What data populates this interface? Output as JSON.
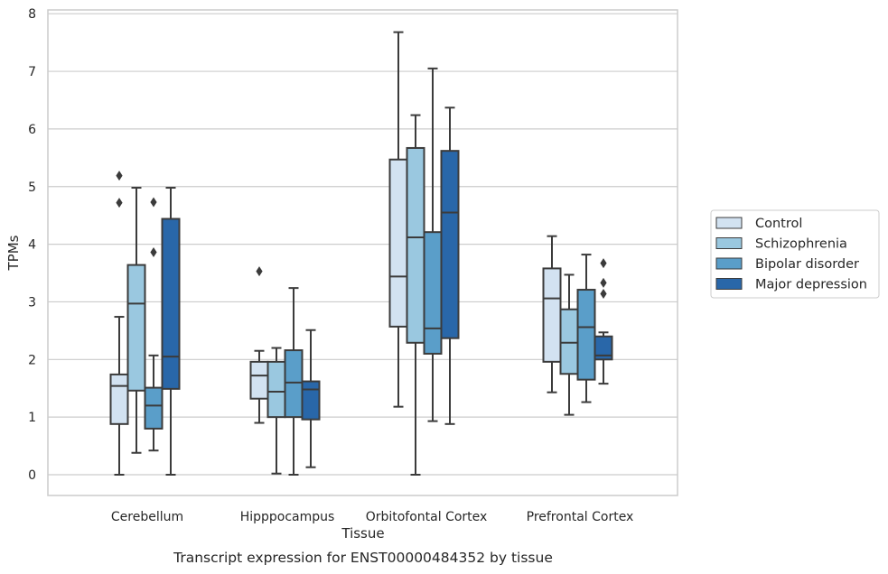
{
  "chart_data": {
    "type": "box",
    "xlabel": "Tissue",
    "ylabel": "TPMs",
    "caption": "Transcript expression for ENST00000484352 by tissue",
    "ylim": [
      -0.37,
      8.07
    ],
    "yticks": [
      0,
      1,
      2,
      3,
      4,
      5,
      6,
      7,
      8
    ],
    "grid": "horizontal",
    "legend_position": "right",
    "categories": [
      "Cerebellum",
      "Hipppocampus",
      "Orbitofontal Cortex",
      "Prefrontal Cortex"
    ],
    "series": [
      {
        "name": "Control",
        "color": "#d2e2f1",
        "boxes": [
          {
            "whislo": 0.0,
            "q1": 0.88,
            "med": 1.54,
            "q3": 1.74,
            "whishi": 2.74,
            "fliers": []
          },
          {
            "whislo": 0.9,
            "q1": 1.32,
            "med": 1.72,
            "q3": 1.96,
            "whishi": 2.15,
            "fliers": []
          },
          {
            "whislo": 1.18,
            "q1": 2.57,
            "med": 3.44,
            "q3": 5.47,
            "whishi": 7.68,
            "fliers": []
          },
          {
            "whislo": 1.43,
            "q1": 1.96,
            "med": 3.06,
            "q3": 3.58,
            "whishi": 4.14,
            "fliers": []
          }
        ]
      },
      {
        "name": "Schizophrenia",
        "color": "#9ac8e0",
        "boxes": [
          {
            "whislo": 0.38,
            "q1": 1.46,
            "med": 2.97,
            "q3": 3.64,
            "whishi": 4.98,
            "fliers": []
          },
          {
            "whislo": 0.02,
            "q1": 1.0,
            "med": 1.44,
            "q3": 1.96,
            "whishi": 2.2,
            "fliers": []
          },
          {
            "whislo": 0.0,
            "q1": 2.29,
            "med": 4.12,
            "q3": 5.67,
            "whishi": 6.24,
            "fliers": []
          },
          {
            "whislo": 1.04,
            "q1": 1.75,
            "med": 2.29,
            "q3": 2.87,
            "whishi": 3.47,
            "fliers": []
          }
        ]
      },
      {
        "name": "Bipolar disorder",
        "color": "#5a9ec9",
        "boxes": [
          {
            "whislo": 0.42,
            "q1": 0.8,
            "med": 1.2,
            "q3": 1.51,
            "whishi": 2.07,
            "fliers": [
              3.86,
              4.73
            ]
          },
          {
            "whislo": 0.0,
            "q1": 1.0,
            "med": 1.6,
            "q3": 2.16,
            "whishi": 3.24,
            "fliers": []
          },
          {
            "whislo": 0.93,
            "q1": 2.1,
            "med": 2.54,
            "q3": 4.21,
            "whishi": 7.05,
            "fliers": []
          },
          {
            "whislo": 1.26,
            "q1": 1.65,
            "med": 2.56,
            "q3": 3.21,
            "whishi": 3.82,
            "fliers": []
          }
        ]
      },
      {
        "name": "Major depression",
        "color": "#2967a9",
        "boxes": [
          {
            "whislo": 0.0,
            "q1": 1.49,
            "med": 2.05,
            "q3": 4.44,
            "whishi": 4.98,
            "fliers": []
          },
          {
            "whislo": 0.13,
            "q1": 0.96,
            "med": 1.48,
            "q3": 1.62,
            "whishi": 2.51,
            "fliers": []
          },
          {
            "whislo": 0.88,
            "q1": 2.37,
            "med": 4.55,
            "q3": 5.62,
            "whishi": 6.37,
            "fliers": []
          },
          {
            "whislo": 1.58,
            "q1": 2.0,
            "med": 2.07,
            "q3": 2.4,
            "whishi": 2.47,
            "fliers": [
              3.14,
              3.33,
              3.67
            ]
          }
        ]
      }
    ],
    "extra_fliers": [
      {
        "category": "Cerebellum",
        "series": "Control",
        "values": [
          4.72,
          5.19
        ]
      },
      {
        "category": "Hipppocampus",
        "series": "Control",
        "values": [
          3.53
        ]
      }
    ]
  }
}
